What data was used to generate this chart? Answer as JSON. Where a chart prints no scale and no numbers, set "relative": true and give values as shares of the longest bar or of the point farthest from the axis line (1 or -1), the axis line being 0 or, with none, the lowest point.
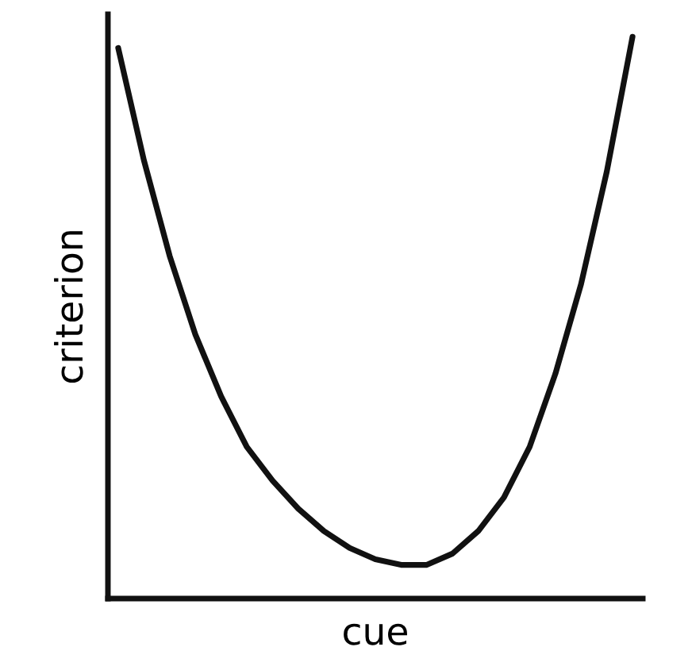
{
  "chart_data": {
    "type": "line",
    "relative": true,
    "xlabel": "cue",
    "ylabel": "criterion",
    "categories": [
      null,
      null,
      null,
      null,
      null,
      null,
      null,
      null,
      null,
      null,
      null,
      null,
      null,
      null,
      null,
      null,
      null,
      null,
      null,
      null,
      null
    ],
    "series": [
      {
        "color": "#111111",
        "values": [
          0.98,
          0.78,
          0.61,
          0.47,
          0.36,
          0.27,
          0.21,
          0.16,
          0.12,
          0.09,
          0.07,
          0.06,
          0.06,
          0.08,
          0.12,
          0.18,
          0.27,
          0.4,
          0.56,
          0.76,
          1
        ]
      }
    ],
    "legend": false,
    "marker": "none",
    "line_style": "solid"
  }
}
